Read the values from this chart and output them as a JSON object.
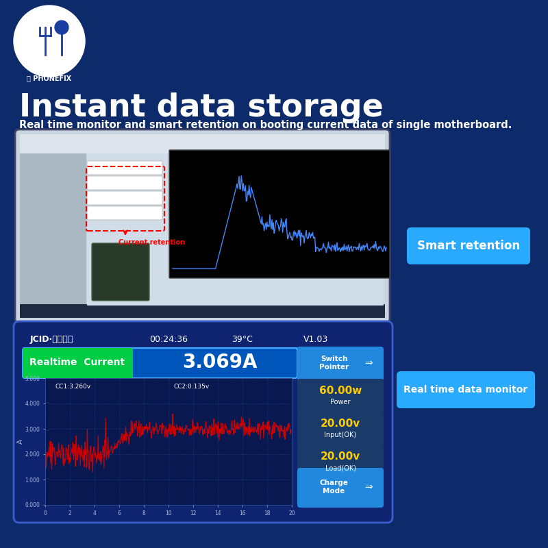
{
  "bg_color": "#0d2a6b",
  "title": "Instant data storage",
  "subtitle": "Real time monitor and smart retention on booting current data of single motherboard.",
  "title_color": "#ffffff",
  "subtitle_color": "#ffffff",
  "logo_text": "PHONEFIX",
  "smart_retention_label": "Smart retention",
  "realtime_data_monitor_label": "Real time data monitor",
  "jcid_label": "JCID·精诚图纸",
  "time_label": "00:24:36",
  "temp_label": "39°C",
  "version_label": "V1.03",
  "realtime_current_label": "Realtime  Current",
  "current_value": "3.069A",
  "switch_pointer_label": "Switch\nPointer",
  "cc1_label": "CC1:3.260v",
  "cc2_label": "CC2:0.135v",
  "power_value": "60.00w",
  "power_label": "Power",
  "input_value": "20.00v",
  "input_label": "Input(OK)",
  "load_value": "20.00v",
  "load_label": "Load(OK)",
  "charge_mode_label": "Charge\nMode",
  "panel_bg": "#0e2470",
  "panel_border": "#3a5faa",
  "graph_bg": "#0a1850",
  "realtime_btn_color": "#00aaff",
  "green_bar_color": "#00cc44",
  "side_btn_color": "#2288dd",
  "side_dark_btn_color": "#1a3a6a",
  "power_text_color": "#ffcc00",
  "grid_color": "#3a5faa",
  "waveform_color": "#cc0000",
  "axis_label_color": "#aabbdd",
  "y_tick_labels": [
    "0.000",
    "1.000",
    "2.000",
    "3.000",
    "4.000",
    "5.000"
  ],
  "y_tick_values": [
    0.0,
    1.0,
    2.0,
    3.0,
    4.0,
    5.0
  ],
  "x_tick_labels": [
    "0",
    "2",
    "4",
    "6",
    "8",
    "10",
    "12",
    "14",
    "16",
    "18",
    "20"
  ],
  "x_tick_values": [
    0,
    2,
    4,
    6,
    8,
    10,
    12,
    14,
    16,
    18,
    20
  ]
}
